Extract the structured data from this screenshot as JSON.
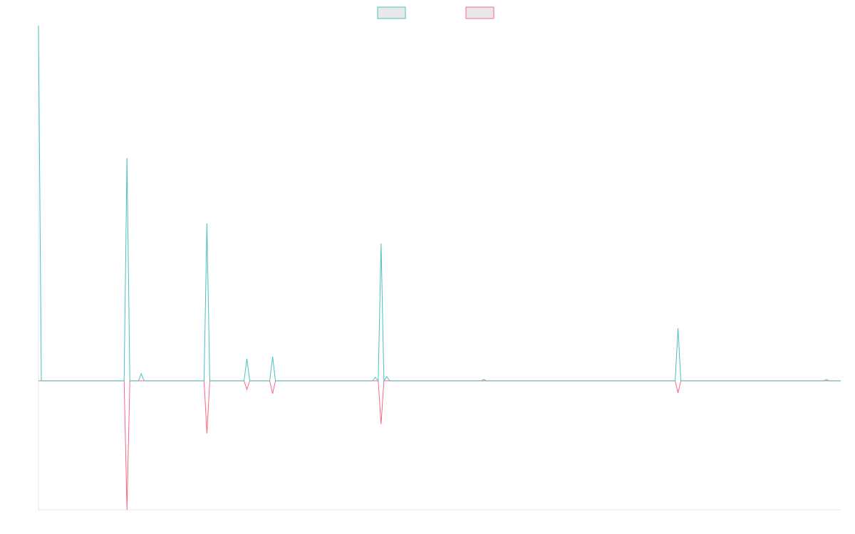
{
  "chart_data": {
    "type": "line",
    "categories": [
      null,
      null,
      null,
      null,
      null,
      null,
      null,
      null,
      null,
      null,
      null,
      null,
      null,
      null,
      null,
      null,
      null,
      null,
      null,
      null,
      null,
      null,
      null,
      null,
      null,
      null,
      null,
      null,
      null,
      null,
      null,
      null,
      null,
      null,
      null,
      null,
      null,
      null,
      null,
      null,
      null,
      null,
      null,
      null,
      null,
      null,
      null,
      null,
      null,
      null,
      null,
      null,
      null,
      null,
      null,
      null,
      null,
      null,
      null,
      null,
      null,
      null,
      null,
      null,
      null,
      null,
      null,
      null,
      null,
      null,
      null,
      null,
      null,
      null,
      null,
      null,
      null,
      null,
      null,
      null,
      null,
      null,
      null,
      null,
      null,
      null,
      null,
      null,
      null,
      null,
      null,
      null,
      null,
      null,
      null,
      null,
      null,
      null,
      null,
      null,
      null,
      null,
      null,
      null,
      null,
      null,
      null,
      null,
      null,
      null,
      null,
      null,
      null,
      null,
      null,
      null,
      null,
      null,
      null,
      null,
      null,
      null,
      null,
      null,
      null,
      null,
      null,
      null,
      null,
      null,
      null,
      null,
      null,
      null,
      null,
      null,
      null,
      null,
      null,
      null,
      null,
      null,
      null,
      null,
      null,
      null,
      null,
      null,
      null,
      null,
      null,
      null,
      null,
      null,
      null,
      null,
      null,
      null,
      null,
      null,
      null,
      null,
      null,
      null,
      null,
      null,
      null,
      null,
      null,
      null,
      null,
      null,
      null,
      null,
      null,
      null,
      null,
      null,
      null,
      null,
      null,
      null,
      null,
      null,
      null,
      null,
      null,
      null,
      null,
      null,
      null,
      null,
      null,
      null,
      null,
      null,
      null,
      null,
      null,
      null,
      null,
      null,
      null,
      null,
      null,
      null,
      null,
      null,
      null,
      null,
      null,
      null,
      null,
      null,
      null,
      null,
      null,
      null,
      null,
      null,
      null,
      null,
      null,
      null,
      null,
      null,
      null,
      null,
      null,
      null,
      null,
      null,
      null,
      null,
      null,
      null,
      null,
      null,
      null,
      null,
      null,
      null,
      null,
      null,
      null,
      null,
      null,
      null,
      null,
      null,
      null,
      null,
      null,
      null,
      null,
      null,
      null,
      null,
      null,
      null,
      null,
      null,
      null,
      null,
      null,
      null,
      null,
      null,
      null,
      null,
      null,
      null,
      null,
      null,
      null,
      null,
      null,
      null,
      null,
      null,
      null,
      null
    ],
    "series": [
      {
        "color": "#ff6384",
        "values": [
          0,
          0,
          0,
          0,
          0,
          0,
          0,
          0,
          0,
          0,
          0,
          0,
          0,
          0,
          0,
          0,
          0,
          0,
          0,
          0,
          0,
          0,
          0,
          0,
          0,
          0,
          0,
          0,
          0,
          0,
          0,
          -36.3,
          0,
          0,
          0,
          0,
          0,
          0,
          0,
          0,
          0,
          0,
          0,
          0,
          0,
          0,
          0,
          0,
          0,
          0,
          0,
          0,
          0,
          0,
          0,
          0,
          0,
          0,
          0,
          -14.8,
          0,
          0,
          0,
          0,
          0,
          0,
          0,
          0,
          0,
          0,
          0,
          0,
          0,
          -2.4,
          0,
          0,
          0,
          0,
          0,
          0,
          0,
          0,
          -3.6,
          0,
          0,
          0,
          0,
          0,
          0,
          0,
          0,
          0,
          0,
          0,
          0,
          0,
          0,
          0,
          0,
          0,
          0,
          0,
          0,
          0,
          0,
          0,
          0,
          0,
          0,
          0,
          0,
          0,
          0,
          0,
          0,
          0,
          0,
          0,
          0,
          0,
          -12.2,
          0,
          0,
          0,
          0,
          0,
          0,
          0,
          0,
          0,
          0,
          0,
          0,
          0,
          0,
          0,
          0,
          0,
          0,
          0,
          0,
          0,
          0,
          0,
          0,
          0,
          0,
          0,
          0,
          0,
          0,
          0,
          0,
          0,
          0,
          0,
          0,
          0,
          0,
          0,
          0,
          0,
          0,
          0,
          0,
          0,
          0,
          0,
          0,
          0,
          0,
          0,
          0,
          0,
          0,
          0,
          0,
          0,
          0,
          0,
          0,
          0,
          0,
          0,
          0,
          0,
          0,
          0,
          0,
          0,
          0,
          0,
          0,
          0,
          0,
          0,
          0,
          0,
          0,
          0,
          0,
          0,
          0,
          0,
          0,
          0,
          0,
          0,
          0,
          0,
          0,
          0,
          0,
          0,
          0,
          0,
          0,
          0,
          0,
          0,
          0,
          0,
          0,
          0,
          -3.4,
          0,
          0,
          0,
          0,
          0,
          0,
          0,
          0,
          0,
          0,
          0,
          0,
          0,
          0,
          0,
          0,
          0,
          0,
          0,
          0,
          0,
          0,
          0,
          0,
          0,
          0,
          0,
          0,
          0,
          0,
          0,
          0,
          0,
          0,
          0,
          0,
          0,
          0,
          0,
          0,
          0,
          0,
          0,
          0,
          0,
          0,
          0,
          0,
          0,
          0,
          0,
          0,
          0,
          0,
          0,
          0,
          0
        ]
      },
      {
        "color": "#4bc0c0",
        "values": [
          100,
          0,
          0,
          0,
          0,
          0,
          0,
          0,
          0,
          0,
          0,
          0,
          0,
          0,
          0,
          0,
          0,
          0,
          0,
          0,
          0,
          0,
          0,
          0,
          0,
          0,
          0,
          0,
          0,
          0,
          0,
          62.7,
          0,
          0,
          0,
          0,
          2,
          0,
          0,
          0,
          0,
          0,
          0,
          0,
          0,
          0,
          0,
          0,
          0,
          0,
          0,
          0,
          0,
          0,
          0,
          0,
          0,
          0,
          0,
          44.3,
          0,
          0,
          0,
          0,
          0,
          0,
          0,
          0,
          0,
          0,
          0,
          0,
          0,
          6.2,
          0,
          0,
          0,
          0,
          0,
          0,
          0,
          0,
          6.8,
          0,
          0,
          0,
          0,
          0,
          0,
          0,
          0,
          0,
          0,
          0,
          0,
          0,
          0,
          0,
          0,
          0,
          0,
          0,
          0,
          0,
          0,
          0,
          0,
          0,
          0,
          0,
          0,
          0,
          0,
          0,
          0,
          0,
          0,
          0,
          1,
          0,
          38.7,
          0,
          1.2,
          0,
          0,
          0,
          0,
          0,
          0,
          0,
          0,
          0,
          0,
          0,
          0,
          0,
          0,
          0,
          0,
          0,
          0,
          0,
          0,
          0,
          0,
          0,
          0,
          0,
          0,
          0,
          0,
          0,
          0,
          0,
          0,
          0,
          0.4,
          0,
          0,
          0,
          0,
          0,
          0,
          0,
          0,
          0,
          0,
          0,
          0,
          0,
          0,
          0,
          0,
          0,
          0,
          0,
          0,
          0,
          0,
          0,
          0,
          0,
          0,
          0,
          0,
          0,
          0,
          0,
          0,
          0,
          0,
          0,
          0,
          0,
          0,
          0,
          0,
          0,
          0,
          0,
          0,
          0,
          0,
          0,
          0,
          0,
          0,
          0,
          0,
          0,
          0,
          0,
          0,
          0,
          0,
          0,
          0,
          0,
          0,
          0,
          0,
          0,
          0,
          0,
          14.8,
          0,
          0,
          0,
          0,
          0,
          0,
          0,
          0,
          0,
          0,
          0,
          0,
          0,
          0,
          0,
          0,
          0,
          0,
          0,
          0,
          0,
          0,
          0,
          0,
          0,
          0,
          0,
          0,
          0,
          0,
          0,
          0,
          0,
          0,
          0,
          0,
          0,
          0,
          0,
          0,
          0,
          0,
          0,
          0,
          0,
          0,
          0,
          0,
          0,
          0,
          0,
          0.4,
          0,
          0,
          0,
          0,
          0
        ]
      }
    ],
    "ylim": [
      -36.3,
      100
    ],
    "legend": "top"
  }
}
